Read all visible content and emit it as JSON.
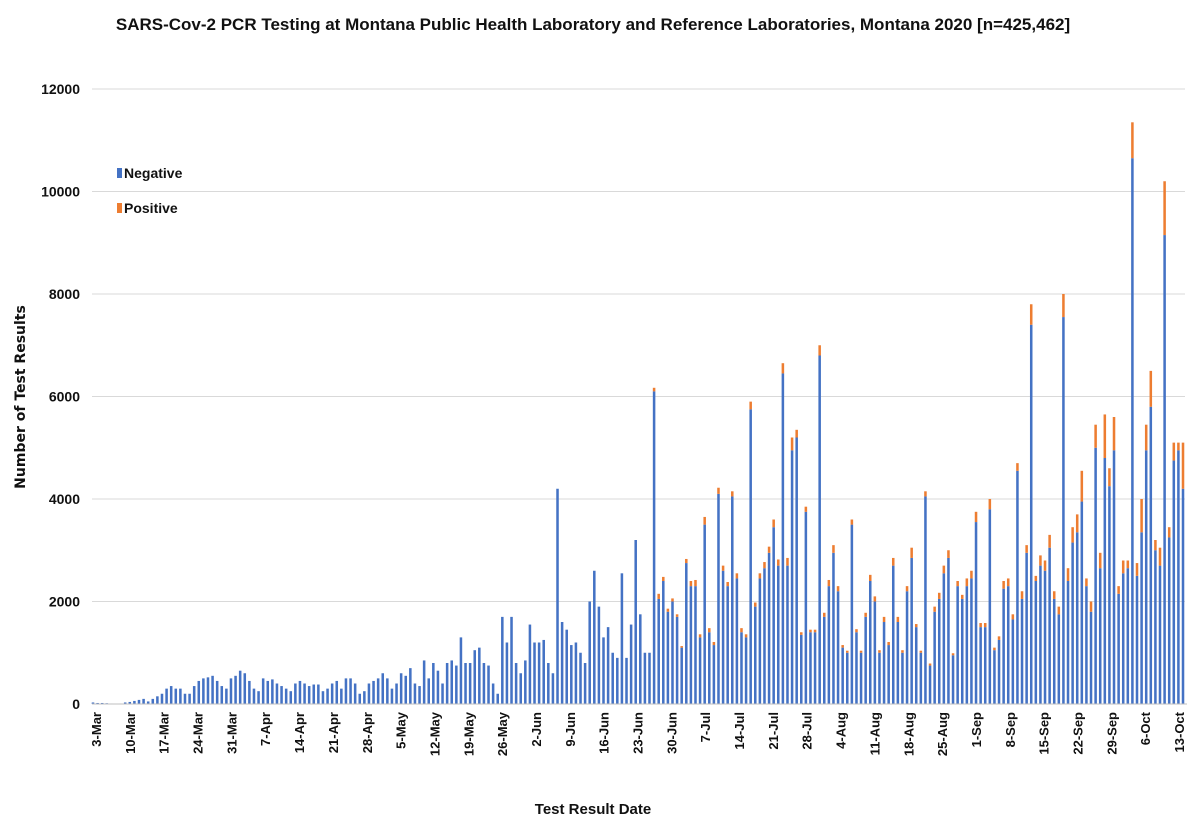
{
  "chart_data": {
    "type": "bar",
    "stacked": true,
    "title": "SARS-Cov-2 PCR Testing at Montana Public Health Laboratory and Reference Laboratories, Montana 2020 [n=425,462]",
    "xlabel": "Test Result Date",
    "ylabel": "Number of Test Results",
    "ylim": [
      0,
      12000
    ],
    "yticks": [
      0,
      2000,
      4000,
      6000,
      8000,
      10000,
      12000
    ],
    "grid": "horizontal",
    "legend_position": "upper-left",
    "x_tick_labels": [
      "3-Mar",
      "10-Mar",
      "17-Mar",
      "24-Mar",
      "31-Mar",
      "7-Apr",
      "14-Apr",
      "21-Apr",
      "28-Apr",
      "5-May",
      "12-May",
      "19-May",
      "26-May",
      "2-Jun",
      "9-Jun",
      "16-Jun",
      "23-Jun",
      "30-Jun",
      "7-Jul",
      "14-Jul",
      "21-Jul",
      "28-Jul",
      "4-Aug",
      "11-Aug",
      "18-Aug",
      "25-Aug",
      "1-Sep",
      "8-Sep",
      "15-Sep",
      "22-Sep",
      "29-Sep",
      "6-Oct",
      "13-Oct"
    ],
    "series": [
      {
        "name": "Negative",
        "color": "#4472c4",
        "values": [
          30,
          20,
          20,
          15,
          10,
          0,
          10,
          30,
          40,
          60,
          80,
          100,
          50,
          100,
          150,
          200,
          300,
          350,
          300,
          300,
          200,
          200,
          350,
          450,
          500,
          520,
          550,
          450,
          350,
          300,
          500,
          550,
          650,
          600,
          450,
          300,
          250,
          500,
          450,
          480,
          400,
          350,
          300,
          250,
          400,
          450,
          400,
          350,
          380,
          380,
          250,
          300,
          400,
          450,
          300,
          500,
          500,
          400,
          200,
          250,
          400,
          450,
          500,
          600,
          500,
          300,
          400,
          600,
          550,
          700,
          400,
          350,
          850,
          500,
          800,
          650,
          400,
          800,
          850,
          750,
          1300,
          800,
          800,
          1050,
          1100,
          800,
          750,
          400,
          200,
          1700,
          1200,
          1700,
          800,
          600,
          850,
          1550,
          1200,
          1200,
          1250,
          800,
          600,
          4200,
          1600,
          1450,
          1150,
          1200,
          1000,
          800,
          2000,
          2600,
          1900,
          1300,
          1500,
          1000,
          900,
          2550,
          900,
          1550,
          3200,
          1750,
          1000,
          1000,
          6100,
          2050,
          2400,
          1800,
          2000,
          1700,
          1100,
          2750,
          2300,
          2300,
          1300,
          3500,
          1400,
          1150,
          4100,
          2600,
          2300,
          4050,
          2450,
          1400,
          1300,
          5750,
          1900,
          2450,
          2650,
          2950,
          3450,
          2700,
          6450,
          2700,
          4950,
          5200,
          1350,
          3750,
          1400,
          1400,
          6800,
          1700,
          2300,
          2950,
          2200,
          1100,
          1000,
          3500,
          1400,
          1000,
          1700,
          2400,
          2000,
          1000,
          1600,
          1150,
          2700,
          1600,
          1000,
          2200,
          2850,
          1500,
          1000,
          4050,
          750,
          1800,
          2050,
          2550,
          2850,
          950,
          2300,
          2050,
          2300,
          2450,
          3550,
          1500,
          1500,
          3800,
          1050,
          1250,
          2250,
          2300,
          1650,
          4550,
          2050,
          2950,
          7400,
          2400,
          2700,
          2600,
          3050,
          2050,
          1750,
          7550,
          2400,
          3150,
          3350,
          3950,
          2300,
          1800,
          5000,
          2650,
          4800,
          4250,
          4950,
          2150,
          2550,
          2650,
          10650,
          2500,
          3350,
          4950,
          5800,
          3000,
          2700,
          9150,
          3250,
          4750,
          4950,
          4200
        ]
      },
      {
        "name": "Positive",
        "color": "#ed7d31",
        "values": [
          0,
          0,
          0,
          0,
          0,
          0,
          0,
          0,
          0,
          0,
          0,
          0,
          0,
          0,
          0,
          0,
          0,
          0,
          0,
          0,
          0,
          0,
          0,
          0,
          0,
          0,
          0,
          0,
          0,
          0,
          0,
          0,
          0,
          0,
          0,
          0,
          0,
          0,
          0,
          0,
          0,
          0,
          0,
          0,
          0,
          0,
          0,
          0,
          0,
          0,
          0,
          0,
          0,
          0,
          0,
          0,
          0,
          0,
          0,
          0,
          0,
          0,
          0,
          0,
          0,
          0,
          0,
          0,
          0,
          0,
          0,
          0,
          0,
          0,
          0,
          0,
          0,
          0,
          0,
          0,
          0,
          0,
          0,
          0,
          0,
          0,
          0,
          0,
          0,
          0,
          0,
          0,
          0,
          0,
          0,
          0,
          0,
          0,
          0,
          0,
          0,
          0,
          0,
          0,
          0,
          0,
          0,
          0,
          0,
          0,
          0,
          0,
          0,
          0,
          0,
          0,
          0,
          0,
          0,
          0,
          0,
          0,
          70,
          100,
          80,
          60,
          60,
          50,
          30,
          80,
          100,
          120,
          60,
          150,
          80,
          60,
          120,
          100,
          80,
          100,
          100,
          80,
          60,
          150,
          80,
          100,
          120,
          120,
          150,
          120,
          200,
          150,
          250,
          150,
          50,
          100,
          50,
          50,
          200,
          80,
          120,
          150,
          100,
          50,
          40,
          100,
          60,
          40,
          80,
          120,
          100,
          50,
          100,
          60,
          150,
          100,
          50,
          100,
          200,
          60,
          40,
          100,
          40,
          100,
          120,
          150,
          150,
          40,
          100,
          80,
          150,
          150,
          200,
          80,
          80,
          200,
          50,
          70,
          150,
          150,
          100,
          150,
          150,
          150,
          400,
          100,
          200,
          200,
          250,
          150,
          150,
          450,
          250,
          300,
          350,
          600,
          150,
          200,
          450,
          300,
          850,
          350,
          650,
          150,
          250,
          150,
          700,
          250,
          650,
          500,
          700,
          200,
          350,
          1050,
          200,
          350,
          150,
          900
        ]
      }
    ]
  }
}
